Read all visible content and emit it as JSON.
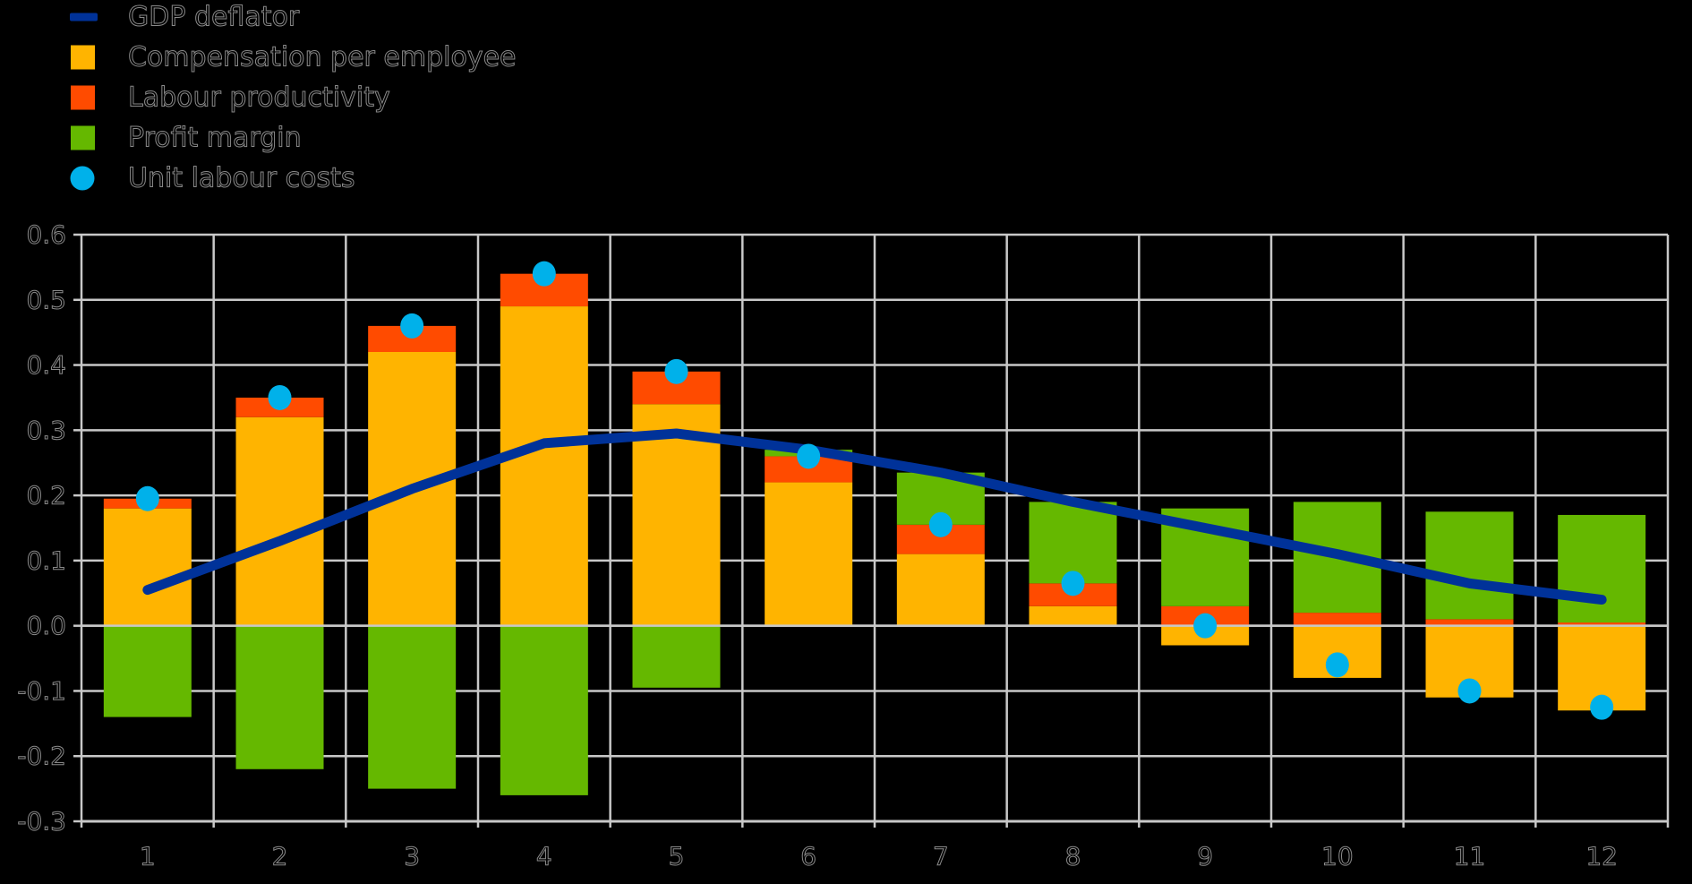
{
  "chart_data": {
    "type": "bar",
    "subtype": "stacked-bar-with-line-and-points",
    "title": "",
    "categories": [
      "1",
      "2",
      "3",
      "4",
      "5",
      "6",
      "7",
      "8",
      "9",
      "10",
      "11",
      "12"
    ],
    "series": [
      {
        "name": "GDP deflator",
        "type": "line",
        "color": "#003299",
        "values": [
          0.055,
          0.13,
          0.21,
          0.28,
          0.295,
          0.27,
          0.235,
          0.19,
          0.15,
          0.11,
          0.065,
          0.04
        ]
      },
      {
        "name": "Compensation per employee",
        "type": "bar",
        "color": "#FFB400",
        "values": [
          0.18,
          0.32,
          0.42,
          0.49,
          0.34,
          0.22,
          0.11,
          0.03,
          -0.03,
          -0.08,
          -0.11,
          -0.13
        ]
      },
      {
        "name": "Labour productivity",
        "type": "bar",
        "color": "#FF4B00",
        "values": [
          0.015,
          0.03,
          0.04,
          0.05,
          0.05,
          0.04,
          0.045,
          0.035,
          0.03,
          0.02,
          0.01,
          0.005
        ]
      },
      {
        "name": "Profit margin",
        "type": "bar",
        "color": "#65B800",
        "values": [
          -0.14,
          -0.22,
          -0.25,
          -0.26,
          -0.095,
          0.01,
          0.08,
          0.125,
          0.15,
          0.17,
          0.165,
          0.165
        ]
      },
      {
        "name": "Unit labour costs",
        "type": "scatter",
        "color": "#00B1EA",
        "values": [
          0.195,
          0.35,
          0.46,
          0.54,
          0.39,
          0.26,
          0.155,
          0.065,
          0.0,
          -0.06,
          -0.1,
          -0.125
        ]
      }
    ],
    "xlabel": "",
    "ylabel": "",
    "ylim": [
      -0.3,
      0.6
    ],
    "ytick_step": 0.1,
    "ytick_labels": [
      "0.6",
      "0.5",
      "0.4",
      "0.3",
      "0.2",
      "0.1",
      "0.0",
      "-0.1",
      "-0.2",
      "-0.3"
    ],
    "grid": true,
    "legend_position": "top-left",
    "colors": {
      "background": "#000000",
      "gridline": "#C8C8C8",
      "label_fill": "#000000",
      "label_outline": "#8A8A8A"
    }
  }
}
